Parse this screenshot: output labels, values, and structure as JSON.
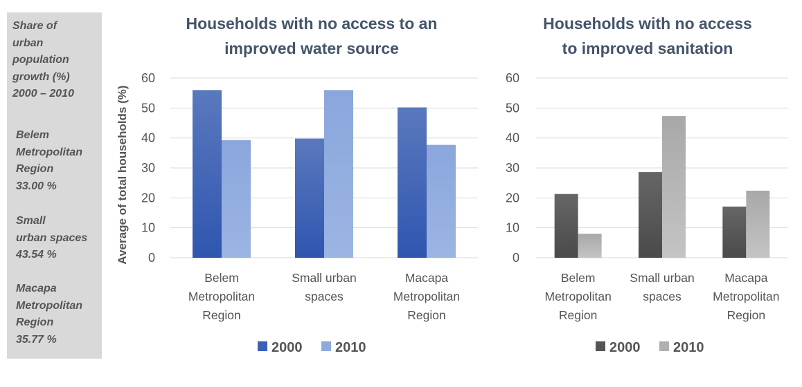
{
  "sidebar": {
    "heading": "Share of\nurban\npopulation\ngrowth (%)\n2000 – 2010",
    "belem": "Belem\nMetropolitan\nRegion\n33.00 %",
    "small": "Small\nurban spaces\n43.54 %",
    "macapa": "Macapa\nMetropolitan\nRegion\n35.77 %"
  },
  "colors": {
    "water_2000": "#3a60b8",
    "water_2010": "#8eaadc",
    "san_2000": "#555555",
    "san_2010": "#b0b0b0"
  },
  "chart_data": [
    {
      "type": "bar",
      "title": "Households with no access to an\nimproved water source",
      "ylabel": "Average of total households (%)",
      "xlabel": "",
      "ylim": [
        0,
        60
      ],
      "yticks": [
        0,
        10,
        20,
        30,
        40,
        50,
        60
      ],
      "grid": true,
      "legend_position": "bottom",
      "categories": [
        "Belem\nMetropolitan\nRegion",
        "Small urban\nspaces",
        "Macapa\nMetropolitan\nRegion"
      ],
      "series": [
        {
          "name": "2000",
          "values": [
            56,
            39.8,
            50.2
          ]
        },
        {
          "name": "2010",
          "values": [
            39.3,
            56,
            37.7
          ]
        }
      ]
    },
    {
      "type": "bar",
      "title": "Households with no access\nto improved sanitation",
      "ylabel": "",
      "xlabel": "",
      "ylim": [
        0,
        60
      ],
      "yticks": [
        0,
        10,
        20,
        30,
        40,
        50,
        60
      ],
      "grid": true,
      "legend_position": "bottom",
      "categories": [
        "Belem\nMetropolitan\nRegion",
        "Small urban\nspaces",
        "Macapa\nMetropolitan\nRegion"
      ],
      "series": [
        {
          "name": "2000",
          "values": [
            21.3,
            28.6,
            17.1
          ]
        },
        {
          "name": "2010",
          "values": [
            8,
            47.3,
            22.4
          ]
        }
      ]
    }
  ]
}
